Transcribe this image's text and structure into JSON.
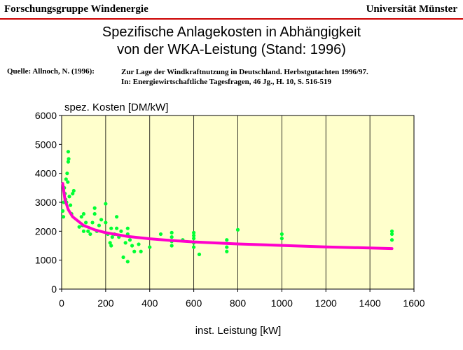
{
  "header": {
    "left": "Forschungsgruppe Windenergie",
    "right": "Universität Münster"
  },
  "title": {
    "line1": "Spezifische Anlagekosten in Abhängigkeit",
    "line2": "von der WKA-Leistung (Stand: 1996)"
  },
  "source": {
    "label": "Quelle: Allnoch, N. (1996):",
    "line1": "Zur Lage der Windkraftnutzung in Deutschland. Herbstgutachten 1996/97.",
    "line2": "In: Energiewirtschaftliche Tagesfragen, 46 Jg., H. 10, S. 516-519"
  },
  "colors": {
    "plot_bg": "#ffffcc",
    "points": "#00ff33",
    "trend": "#ff00cc",
    "header_rule": "#cc0000"
  },
  "chart_data": {
    "type": "scatter",
    "title": "Spezifische Anlagekosten in Abhängigkeit von der WKA-Leistung (Stand: 1996)",
    "xlabel": "inst. Leistung [kW]",
    "ylabel": "spez. Kosten [DM/kW]",
    "xlim": [
      0,
      1600
    ],
    "ylim": [
      0,
      6000
    ],
    "x_ticks": [
      "0",
      "200",
      "400",
      "600",
      "800",
      "1000",
      "1200",
      "1400",
      "1600"
    ],
    "y_ticks": [
      "0",
      "1000",
      "2000",
      "3000",
      "4000",
      "5000",
      "6000"
    ],
    "grid": "vertical",
    "points": [
      {
        "x": 5,
        "y": 2700
      },
      {
        "x": 8,
        "y": 2500
      },
      {
        "x": 10,
        "y": 3000
      },
      {
        "x": 12,
        "y": 3500
      },
      {
        "x": 15,
        "y": 3300
      },
      {
        "x": 18,
        "y": 3100
      },
      {
        "x": 20,
        "y": 3800
      },
      {
        "x": 22,
        "y": 3000
      },
      {
        "x": 25,
        "y": 4000
      },
      {
        "x": 28,
        "y": 3700
      },
      {
        "x": 30,
        "y": 4400
      },
      {
        "x": 30,
        "y": 4750
      },
      {
        "x": 32,
        "y": 4500
      },
      {
        "x": 35,
        "y": 3200
      },
      {
        "x": 40,
        "y": 2900
      },
      {
        "x": 45,
        "y": 2600
      },
      {
        "x": 50,
        "y": 3300
      },
      {
        "x": 55,
        "y": 3400
      },
      {
        "x": 80,
        "y": 2150
      },
      {
        "x": 90,
        "y": 2500
      },
      {
        "x": 95,
        "y": 2200
      },
      {
        "x": 100,
        "y": 2600
      },
      {
        "x": 100,
        "y": 2000
      },
      {
        "x": 110,
        "y": 2300
      },
      {
        "x": 120,
        "y": 2000
      },
      {
        "x": 130,
        "y": 1900
      },
      {
        "x": 140,
        "y": 2300
      },
      {
        "x": 150,
        "y": 2600
      },
      {
        "x": 150,
        "y": 2800
      },
      {
        "x": 160,
        "y": 2000
      },
      {
        "x": 170,
        "y": 2200
      },
      {
        "x": 180,
        "y": 2400
      },
      {
        "x": 200,
        "y": 2300
      },
      {
        "x": 200,
        "y": 2950
      },
      {
        "x": 210,
        "y": 1900
      },
      {
        "x": 220,
        "y": 1600
      },
      {
        "x": 225,
        "y": 1500
      },
      {
        "x": 225,
        "y": 2100
      },
      {
        "x": 230,
        "y": 1800
      },
      {
        "x": 240,
        "y": 1900
      },
      {
        "x": 250,
        "y": 2100
      },
      {
        "x": 250,
        "y": 2500
      },
      {
        "x": 260,
        "y": 1800
      },
      {
        "x": 270,
        "y": 2000
      },
      {
        "x": 280,
        "y": 1100
      },
      {
        "x": 290,
        "y": 1600
      },
      {
        "x": 300,
        "y": 950
      },
      {
        "x": 300,
        "y": 1900
      },
      {
        "x": 300,
        "y": 2100
      },
      {
        "x": 310,
        "y": 1700
      },
      {
        "x": 320,
        "y": 1500
      },
      {
        "x": 330,
        "y": 1300
      },
      {
        "x": 350,
        "y": 1550
      },
      {
        "x": 360,
        "y": 1300
      },
      {
        "x": 400,
        "y": 1450
      },
      {
        "x": 450,
        "y": 1900
      },
      {
        "x": 500,
        "y": 1500
      },
      {
        "x": 500,
        "y": 1650
      },
      {
        "x": 500,
        "y": 1800
      },
      {
        "x": 500,
        "y": 1950
      },
      {
        "x": 550,
        "y": 1700
      },
      {
        "x": 600,
        "y": 1450
      },
      {
        "x": 600,
        "y": 1600
      },
      {
        "x": 600,
        "y": 1750
      },
      {
        "x": 600,
        "y": 1850
      },
      {
        "x": 600,
        "y": 1950
      },
      {
        "x": 625,
        "y": 1200
      },
      {
        "x": 750,
        "y": 1300
      },
      {
        "x": 750,
        "y": 1450
      },
      {
        "x": 750,
        "y": 1700
      },
      {
        "x": 800,
        "y": 2050
      },
      {
        "x": 1000,
        "y": 1750
      },
      {
        "x": 1000,
        "y": 1900
      },
      {
        "x": 1500,
        "y": 1700
      },
      {
        "x": 1500,
        "y": 1900
      },
      {
        "x": 1500,
        "y": 2000
      }
    ],
    "trend": [
      {
        "x": 5,
        "y": 3650
      },
      {
        "x": 15,
        "y": 3100
      },
      {
        "x": 30,
        "y": 2750
      },
      {
        "x": 50,
        "y": 2500
      },
      {
        "x": 100,
        "y": 2200
      },
      {
        "x": 150,
        "y": 2050
      },
      {
        "x": 200,
        "y": 1950
      },
      {
        "x": 300,
        "y": 1820
      },
      {
        "x": 400,
        "y": 1740
      },
      {
        "x": 500,
        "y": 1680
      },
      {
        "x": 600,
        "y": 1630
      },
      {
        "x": 800,
        "y": 1560
      },
      {
        "x": 1000,
        "y": 1510
      },
      {
        "x": 1200,
        "y": 1460
      },
      {
        "x": 1400,
        "y": 1420
      },
      {
        "x": 1500,
        "y": 1400
      }
    ]
  }
}
